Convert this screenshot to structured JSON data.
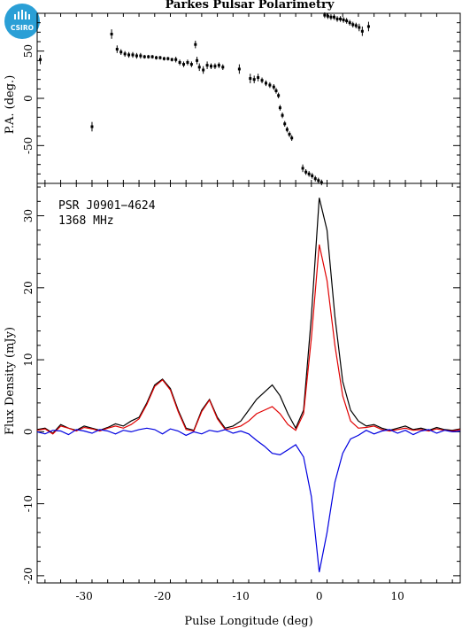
{
  "title": "Parkes Pulsar Polarimetry",
  "logo": {
    "text": "CSIRO",
    "color": "#2a9fd6"
  },
  "chart_data": [
    {
      "type": "scatter",
      "panel": "position-angle",
      "ylabel": "P.A. (deg.)",
      "xlim": [
        -36,
        18
      ],
      "ylim": [
        -90,
        90
      ],
      "yticks": [
        -50,
        0,
        50
      ],
      "points_with_errors": [
        [
          -35.6,
          41,
          5
        ],
        [
          -29,
          -30,
          5
        ],
        [
          -26.5,
          68,
          5
        ],
        [
          -25.8,
          52,
          4
        ],
        [
          -25.3,
          49,
          3
        ],
        [
          -24.8,
          47,
          3
        ],
        [
          -24.3,
          46,
          3
        ],
        [
          -23.8,
          46,
          3
        ],
        [
          -23.3,
          45,
          3
        ],
        [
          -22.8,
          45,
          3
        ],
        [
          -22.3,
          44,
          2
        ],
        [
          -21.8,
          44,
          2
        ],
        [
          -21.3,
          44,
          2
        ],
        [
          -20.8,
          43,
          2
        ],
        [
          -20.3,
          43,
          2
        ],
        [
          -19.8,
          42,
          2
        ],
        [
          -19.3,
          42,
          2
        ],
        [
          -18.8,
          41,
          2
        ],
        [
          -18.3,
          41,
          3
        ],
        [
          -17.8,
          38,
          3
        ],
        [
          -17.3,
          36,
          3
        ],
        [
          -16.8,
          38,
          3
        ],
        [
          -16.3,
          36,
          3
        ],
        [
          -15.8,
          57,
          4
        ],
        [
          -15.6,
          40,
          4
        ],
        [
          -15.3,
          33,
          4
        ],
        [
          -14.8,
          30,
          4
        ],
        [
          -14.3,
          35,
          4
        ],
        [
          -13.8,
          34,
          3
        ],
        [
          -13.3,
          34,
          3
        ],
        [
          -12.8,
          35,
          3
        ],
        [
          -12.3,
          33,
          3
        ],
        [
          -10.2,
          31,
          5
        ],
        [
          -8.8,
          21,
          5
        ],
        [
          -8.3,
          20,
          4
        ],
        [
          -7.8,
          22,
          4
        ],
        [
          -7.3,
          19,
          3
        ],
        [
          -6.8,
          16,
          3
        ],
        [
          -6.3,
          14,
          3
        ],
        [
          -5.8,
          12,
          3
        ],
        [
          -5.5,
          8,
          3
        ],
        [
          -5.2,
          3,
          3
        ],
        [
          -5.0,
          -10,
          3
        ],
        [
          -4.7,
          -18,
          3
        ],
        [
          -4.4,
          -27,
          3
        ],
        [
          -4.1,
          -33,
          3
        ],
        [
          -3.8,
          -38,
          3
        ],
        [
          -3.5,
          -42,
          3
        ],
        [
          -2.1,
          -74,
          4
        ],
        [
          -1.7,
          -78,
          3
        ],
        [
          -1.3,
          -80,
          3
        ],
        [
          -0.9,
          -82,
          3
        ],
        [
          -0.5,
          -85,
          3
        ],
        [
          -0.1,
          -87,
          3
        ],
        [
          0.3,
          -89,
          3
        ],
        [
          0.7,
          88,
          3
        ],
        [
          1.1,
          87,
          3
        ],
        [
          1.5,
          86,
          3
        ],
        [
          1.9,
          86,
          3
        ],
        [
          2.3,
          84,
          3
        ],
        [
          2.7,
          84,
          3
        ],
        [
          3.1,
          83,
          3
        ],
        [
          3.5,
          82,
          3
        ],
        [
          3.9,
          80,
          3
        ],
        [
          4.3,
          78,
          3
        ],
        [
          4.7,
          77,
          3
        ],
        [
          5.1,
          75,
          4
        ],
        [
          5.5,
          71,
          5
        ],
        [
          6.3,
          76,
          5
        ]
      ]
    },
    {
      "type": "line",
      "panel": "flux-profile",
      "xlabel": "Pulse Longitude (deg)",
      "ylabel": "Flux Density (mJy)",
      "annotations": [
        "PSR J0901−4624",
        "1368 MHz"
      ],
      "xlim": [
        -36,
        18
      ],
      "ylim": [
        -21,
        34.5
      ],
      "xticks": [
        -30,
        -20,
        -10,
        0,
        10
      ],
      "yticks": [
        -20,
        -10,
        0,
        10,
        20,
        30
      ],
      "x": [
        -36,
        -35,
        -34,
        -33,
        -32,
        -31,
        -30,
        -29,
        -28,
        -27,
        -26,
        -25,
        -24,
        -23,
        -22,
        -21,
        -20,
        -19,
        -18,
        -17,
        -16,
        -15,
        -14,
        -13,
        -12,
        -11,
        -10,
        -9,
        -8,
        -7,
        -6,
        -5,
        -4,
        -3,
        -2,
        -1,
        0,
        1,
        2,
        3,
        4,
        5,
        6,
        7,
        8,
        9,
        10,
        11,
        12,
        13,
        14,
        15,
        16,
        17,
        18
      ],
      "series": [
        {
          "color": "#000000",
          "values": [
            0.3,
            0.5,
            -0.2,
            1.0,
            0.5,
            0.2,
            0.8,
            0.5,
            0.2,
            0.6,
            1.1,
            0.8,
            1.5,
            2.0,
            4.0,
            6.5,
            7.3,
            6.0,
            3.0,
            0.5,
            0.2,
            3.0,
            4.5,
            2.0,
            0.5,
            0.8,
            1.5,
            3.0,
            4.5,
            5.5,
            6.5,
            5.0,
            2.5,
            0.5,
            3.0,
            16.0,
            32.5,
            28.0,
            16.0,
            7.0,
            3.0,
            1.5,
            0.8,
            1.0,
            0.5,
            0.2,
            0.5,
            0.8,
            0.3,
            0.5,
            0.2,
            0.6,
            0.3,
            0.2,
            0.4
          ]
        },
        {
          "color": "#e00000",
          "values": [
            0.2,
            0.4,
            -0.3,
            0.8,
            0.5,
            0.1,
            0.6,
            0.4,
            0.1,
            0.5,
            0.8,
            0.5,
            1.0,
            1.8,
            3.8,
            6.3,
            7.2,
            5.8,
            2.8,
            0.3,
            0.1,
            2.8,
            4.4,
            1.8,
            0.3,
            0.5,
            0.8,
            1.5,
            2.5,
            3.0,
            3.5,
            2.5,
            1.0,
            0.2,
            2.5,
            13.0,
            26.0,
            21.0,
            12.0,
            5.0,
            1.5,
            0.5,
            0.6,
            0.8,
            0.3,
            0.1,
            0.3,
            0.5,
            0.2,
            0.3,
            0.1,
            0.4,
            0.2,
            0.1,
            0.3
          ]
        },
        {
          "color": "#0000e0",
          "values": [
            0.0,
            -0.3,
            0.2,
            0.1,
            -0.4,
            0.3,
            0.1,
            -0.2,
            0.3,
            0.1,
            -0.3,
            0.2,
            0.0,
            0.3,
            0.5,
            0.3,
            -0.3,
            0.4,
            0.1,
            -0.5,
            0.0,
            -0.3,
            0.2,
            0.0,
            0.3,
            -0.2,
            0.1,
            -0.3,
            -1.2,
            -2.0,
            -3.0,
            -3.2,
            -2.5,
            -1.8,
            -3.5,
            -9.0,
            -19.5,
            -14.0,
            -7.0,
            -3.0,
            -1.0,
            -0.5,
            0.2,
            -0.3,
            0.1,
            0.3,
            -0.2,
            0.2,
            -0.4,
            0.1,
            0.3,
            -0.2,
            0.2,
            0.0,
            0.1
          ]
        }
      ]
    }
  ]
}
